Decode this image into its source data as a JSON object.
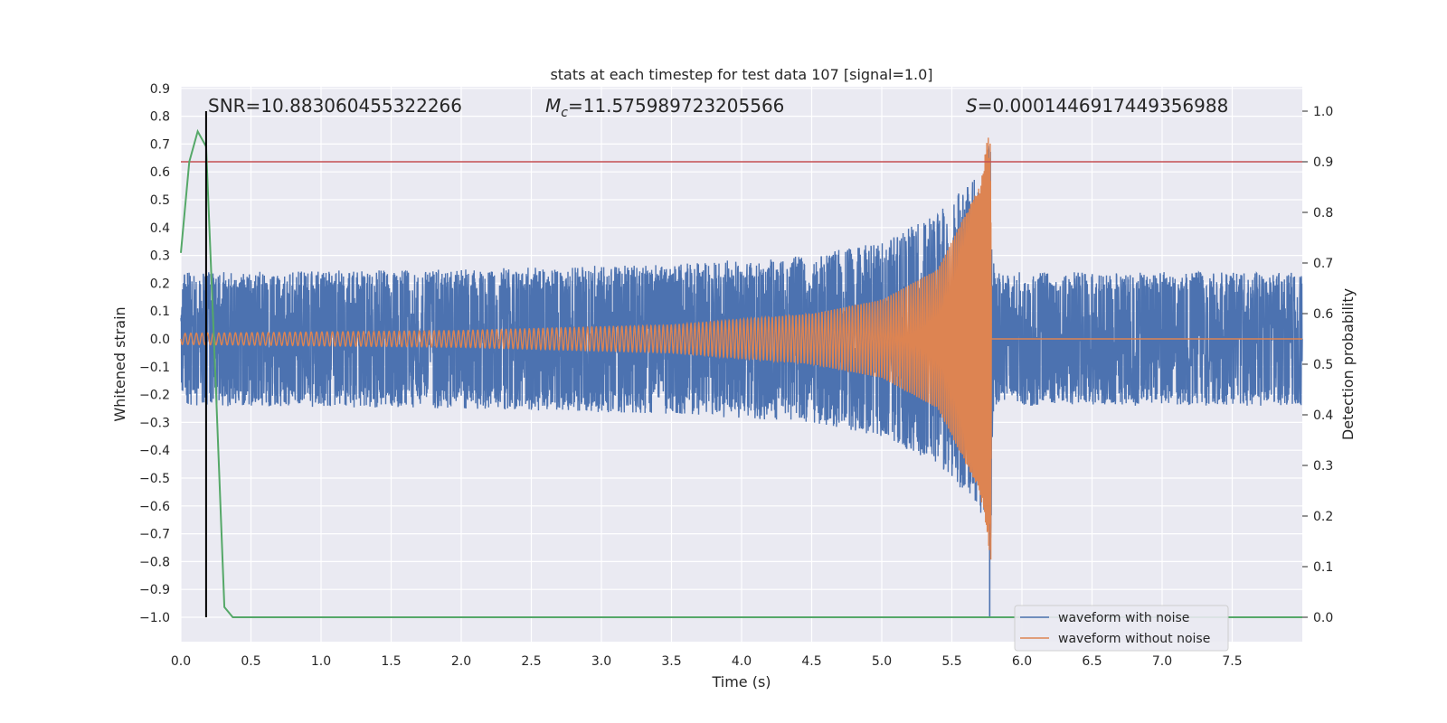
{
  "chart_data": {
    "type": "line",
    "title": "stats at each timestep for test data 107 [signal=1.0]",
    "xlabel": "Time (s)",
    "ylabel": "Whitened strain",
    "y2label": "Detection probability",
    "xlim": [
      0,
      8
    ],
    "ylim": [
      -1.0,
      0.9
    ],
    "y2lim": [
      0.0,
      1.0
    ],
    "xticks": [
      "0.0",
      "0.5",
      "1.0",
      "1.5",
      "2.0",
      "2.5",
      "3.0",
      "3.5",
      "4.0",
      "4.5",
      "5.0",
      "5.5",
      "6.0",
      "6.5",
      "7.0",
      "7.5"
    ],
    "yticks": [
      "0.9",
      "0.8",
      "0.7",
      "0.6",
      "0.5",
      "0.4",
      "0.3",
      "0.2",
      "0.1",
      "0.0",
      "−0.1",
      "−0.2",
      "−0.3",
      "−0.4",
      "−0.5",
      "−0.6",
      "−0.7",
      "−0.8",
      "−0.9",
      "−1.0"
    ],
    "y2ticks": [
      "1.0",
      "0.9",
      "0.8",
      "0.7",
      "0.6",
      "0.5",
      "0.4",
      "0.3",
      "0.2",
      "0.1",
      "0.0"
    ],
    "grid": true,
    "legend_position": "bottom-right",
    "annotations": {
      "snr_text": "SNR=10.883060455322266",
      "mc_prefix": "M",
      "mc_sub": "c",
      "mc_value": "=11.575989723205566",
      "s_prefix": "S",
      "s_value": "=0.0001446917449356988"
    },
    "merger_time": 5.78,
    "threshold_probability": 0.9,
    "detection_time": 0.18,
    "series": [
      {
        "name": "waveform with noise",
        "color": "#4c72b0",
        "envelope": [
          {
            "x": 0.0,
            "amp": 0.24
          },
          {
            "x": 2.0,
            "amp": 0.25
          },
          {
            "x": 3.5,
            "amp": 0.27
          },
          {
            "x": 4.5,
            "amp": 0.3
          },
          {
            "x": 5.0,
            "amp": 0.35
          },
          {
            "x": 5.4,
            "amp": 0.45
          },
          {
            "x": 5.7,
            "amp": 0.62
          },
          {
            "x": 5.78,
            "amp": 0.73
          },
          {
            "x": 5.8,
            "amp": 0.24
          },
          {
            "x": 8.0,
            "amp": 0.24
          }
        ],
        "min_value": -1.0
      },
      {
        "name": "waveform without noise",
        "color": "#dd8452",
        "envelope": [
          {
            "x": 0.0,
            "amp": 0.02
          },
          {
            "x": 2.0,
            "amp": 0.03
          },
          {
            "x": 3.5,
            "amp": 0.05
          },
          {
            "x": 4.5,
            "amp": 0.09
          },
          {
            "x": 5.0,
            "amp": 0.14
          },
          {
            "x": 5.4,
            "amp": 0.25
          },
          {
            "x": 5.7,
            "amp": 0.55
          },
          {
            "x": 5.78,
            "amp": 0.8
          },
          {
            "x": 5.8,
            "amp": 0.0
          },
          {
            "x": 8.0,
            "amp": 0.0
          }
        ]
      },
      {
        "name": "detection probability",
        "color": "#55a868",
        "axis": "right",
        "points": [
          {
            "x": 0.0,
            "y": 0.72
          },
          {
            "x": 0.06,
            "y": 0.9
          },
          {
            "x": 0.12,
            "y": 0.96
          },
          {
            "x": 0.18,
            "y": 0.93
          },
          {
            "x": 0.25,
            "y": 0.45
          },
          {
            "x": 0.31,
            "y": 0.02
          },
          {
            "x": 0.37,
            "y": 0.0
          },
          {
            "x": 8.0,
            "y": 0.0
          }
        ]
      }
    ]
  }
}
